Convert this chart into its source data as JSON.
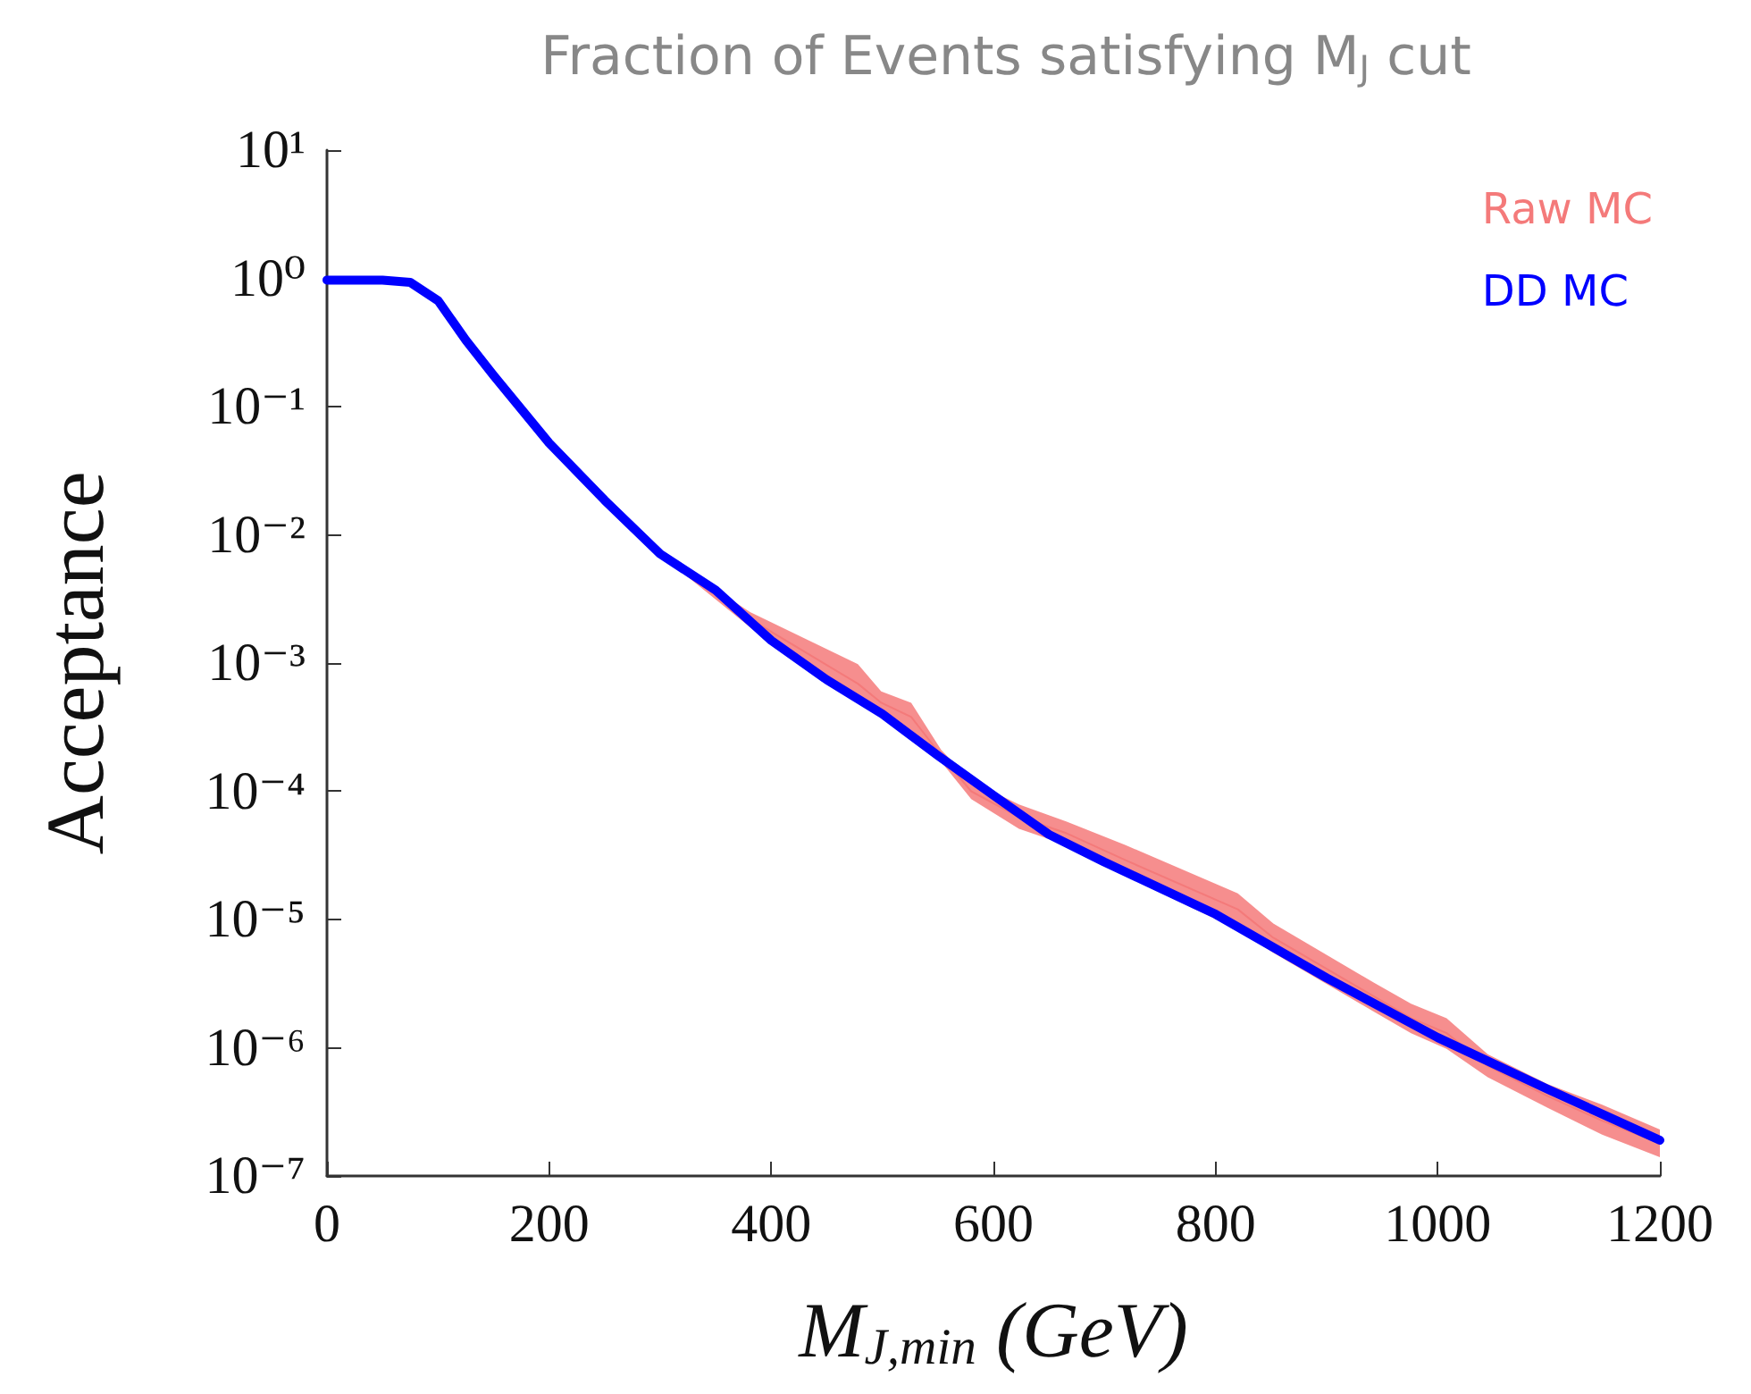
{
  "chart_data": {
    "type": "line",
    "title": "Fraction of Events satisfying M$_{J}$ cut",
    "xlabel": "M$_{J,min}$ (GeV)",
    "ylabel": "Acceptance",
    "log": "y",
    "grid": false,
    "legend": "top right",
    "marker": "none",
    "line_style": "solid",
    "xlim": [
      0,
      1200
    ],
    "xticks": [
      0,
      200,
      400,
      600,
      800,
      1000,
      1200
    ],
    "ylim": [
      1e-07,
      10
    ],
    "yticks": [
      {
        "value": 10,
        "label": "10¹"
      },
      {
        "value": 1,
        "label": "10⁰"
      },
      {
        "value": 0.1,
        "label": "10⁻¹"
      },
      {
        "value": 0.01,
        "label": "10⁻²"
      },
      {
        "value": 0.001,
        "label": "10⁻³"
      },
      {
        "value": 0.0001,
        "label": "10⁻⁴"
      },
      {
        "value": 1e-05,
        "label": "10⁻⁵"
      },
      {
        "value": 1e-06,
        "label": "10⁻⁶"
      },
      {
        "value": 1e-07,
        "label": "10⁻⁷"
      }
    ],
    "series": [
      {
        "name": "Raw MC",
        "color": "#f47a7a",
        "x": [
          300,
          381,
          478,
          499,
          526,
          553,
          580,
          623,
          666,
          719,
          820,
          852,
          943,
          976,
          1008,
          1045,
          1099,
          1148,
          1200
        ],
        "values": [
          null,
          0.0022,
          0.00069,
          0.00049,
          0.00038,
          0.00019,
          0.0001,
          6.3e-05,
          4.7e-05,
          2.9e-05,
          1.2e-05,
          7.2e-06,
          2.5e-06,
          1.7e-06,
          1.3e-06,
          7.2e-07,
          4.2e-07,
          2.7e-07,
          1.8e-07
        ],
        "upper": [
          0.0072,
          0.0025,
          0.00098,
          0.0006,
          0.00049,
          0.00021,
          0.00012,
          7.9e-05,
          5.8e-05,
          3.8e-05,
          1.6e-05,
          9.3e-06,
          3.2e-06,
          2.2e-06,
          1.7e-06,
          8.9e-07,
          5.2e-07,
          3.6e-07,
          2.3e-07
        ],
        "lower": [
          0.007,
          0.0019,
          0.00049,
          0.0004,
          0.0003,
          0.00017,
          8.7e-05,
          5.1e-05,
          3.8e-05,
          2.2e-05,
          8.3e-06,
          5.5e-06,
          1.9e-06,
          1.3e-06,
          9.8e-07,
          5.9e-07,
          3.4e-07,
          2.1e-07,
          1.4e-07
        ]
      },
      {
        "name": "DD MC",
        "color": "#0000ff",
        "x": [
          0,
          50,
          75,
          100,
          125,
          150,
          200,
          250,
          300,
          350,
          400,
          450,
          500,
          550,
          600,
          650,
          700,
          800,
          900,
          1000,
          1100,
          1200
        ],
        "values": [
          0.97,
          0.97,
          0.93,
          0.67,
          0.33,
          0.175,
          0.052,
          0.0186,
          0.0071,
          0.0037,
          0.0015,
          0.00074,
          0.0004,
          0.00019,
          9.3e-05,
          4.6e-05,
          2.8e-05,
          1.1e-05,
          3.5e-06,
          1.2e-06,
          4.7e-07,
          1.9e-07
        ]
      }
    ]
  }
}
